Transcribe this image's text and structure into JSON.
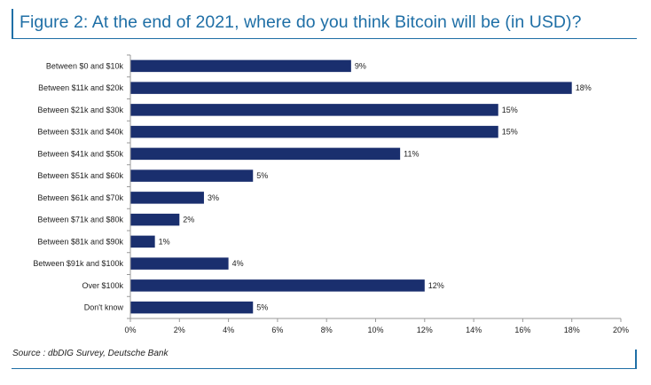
{
  "figure": {
    "title": "Figure 2: At the end of 2021, where do you think Bitcoin will be (in USD)?",
    "source": "Source : dbDIG Survey, Deutsche Bank"
  },
  "colors": {
    "accent": "#1f6fa6",
    "bar": "#1a2f6e",
    "axis": "#999999",
    "text": "#222222"
  },
  "chart_data": {
    "type": "bar",
    "orientation": "horizontal",
    "categories": [
      "Between $0 and $10k",
      "Between $11k and $20k",
      "Between $21k and $30k",
      "Between $31k and $40k",
      "Between $41k and $50k",
      "Between $51k and $60k",
      "Between $61k and $70k",
      "Between $71k and $80k",
      "Between $81k and $90k",
      "Between $91k and $100k",
      "Over $100k",
      "Don't know"
    ],
    "values": [
      9,
      18,
      15,
      15,
      11,
      5,
      3,
      2,
      1,
      4,
      12,
      5
    ],
    "value_labels": [
      "9%",
      "18%",
      "15%",
      "15%",
      "11%",
      "5%",
      "3%",
      "2%",
      "1%",
      "4%",
      "12%",
      "5%"
    ],
    "xlim": [
      0,
      20
    ],
    "xticks": [
      0,
      2,
      4,
      6,
      8,
      10,
      12,
      14,
      16,
      18,
      20
    ],
    "xtick_labels": [
      "0%",
      "2%",
      "4%",
      "6%",
      "8%",
      "10%",
      "12%",
      "14%",
      "16%",
      "18%",
      "20%"
    ],
    "grid": false,
    "legend": "none"
  }
}
